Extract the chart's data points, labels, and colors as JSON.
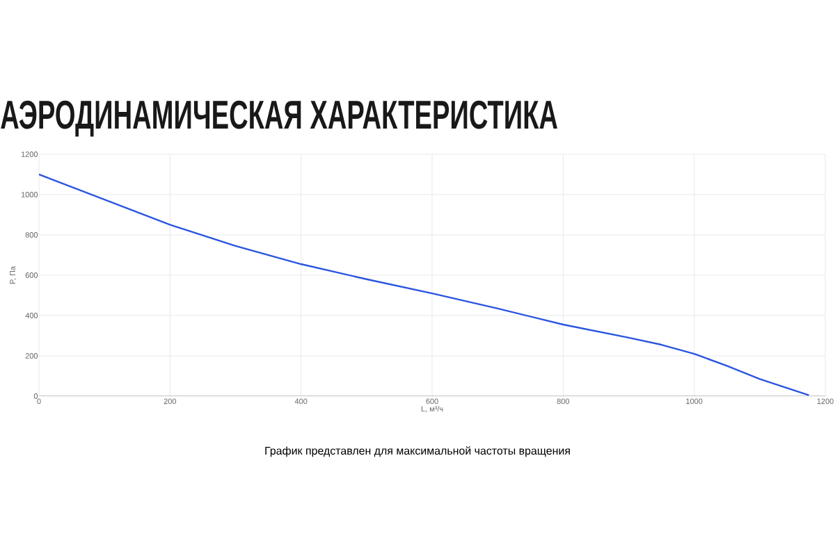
{
  "chart_data": {
    "type": "line",
    "title": "АЭРОДИНАМИЧЕСКАЯ ХАРАКТЕРИСТИКА",
    "xlabel": "L, м³/ч",
    "ylabel": "P, Па",
    "annotations": [
      "График представлен для максимальной частоты вращения"
    ],
    "series": [
      {
        "color": "#2a55e0",
        "x": [
          0,
          100,
          200,
          300,
          400,
          500,
          600,
          700,
          800,
          900,
          950,
          1000,
          1050,
          1100,
          1175
        ],
        "values": [
          1100,
          975,
          850,
          745,
          655,
          580,
          510,
          435,
          355,
          290,
          255,
          210,
          150,
          85,
          5
        ]
      }
    ],
    "xlim": [
      0,
      1200
    ],
    "ylim": [
      0,
      1200
    ],
    "xticks": [
      0,
      200,
      400,
      600,
      800,
      1000,
      1200
    ],
    "yticks": [
      0,
      200,
      400,
      600,
      800,
      1000,
      1200
    ],
    "grid": true,
    "marker": "none",
    "line_style": "solid"
  }
}
